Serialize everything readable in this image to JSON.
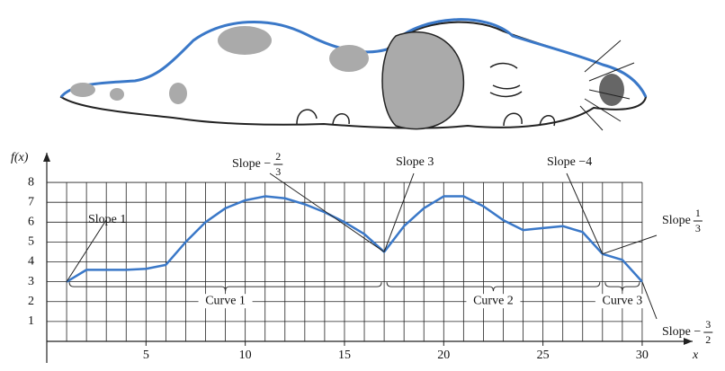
{
  "chart_data": {
    "type": "line",
    "y_label": "f(x)",
    "x_label": "x",
    "x": [
      1,
      2,
      3,
      4,
      5,
      6,
      7,
      8,
      9,
      10,
      11,
      12,
      13,
      14,
      15,
      16,
      17,
      18,
      19,
      20,
      21,
      22,
      23,
      24,
      25,
      26,
      27,
      28,
      29,
      30
    ],
    "values": [
      3,
      3.6,
      3.6,
      3.6,
      3.65,
      3.85,
      5,
      6,
      6.7,
      7.1,
      7.3,
      7.2,
      6.9,
      6.5,
      6,
      5.4,
      4.5,
      5.8,
      6.7,
      7.3,
      7.3,
      6.8,
      6.1,
      5.6,
      5.7,
      5.8,
      5.5,
      4.4,
      4.1,
      3
    ],
    "color": "#3a78c8",
    "xlim": [
      0,
      31
    ],
    "ylim": [
      0,
      8.5
    ],
    "xticks": [
      5,
      10,
      15,
      20,
      25,
      30
    ],
    "yticks": [
      1,
      2,
      3,
      4,
      5,
      6,
      7,
      8
    ],
    "grid": true,
    "annotations": [
      {
        "text": "Slope 1"
      },
      {
        "text": "Slope −",
        "num": "2",
        "den": "3"
      },
      {
        "text": "Slope 3"
      },
      {
        "text": "Slope −4"
      },
      {
        "text": "Slope",
        "num": "1",
        "den": "3"
      },
      {
        "text": "Slope −",
        "num": "3",
        "den": "2"
      }
    ],
    "curves": [
      "Curve 1",
      "Curve 2",
      "Curve 3"
    ]
  }
}
